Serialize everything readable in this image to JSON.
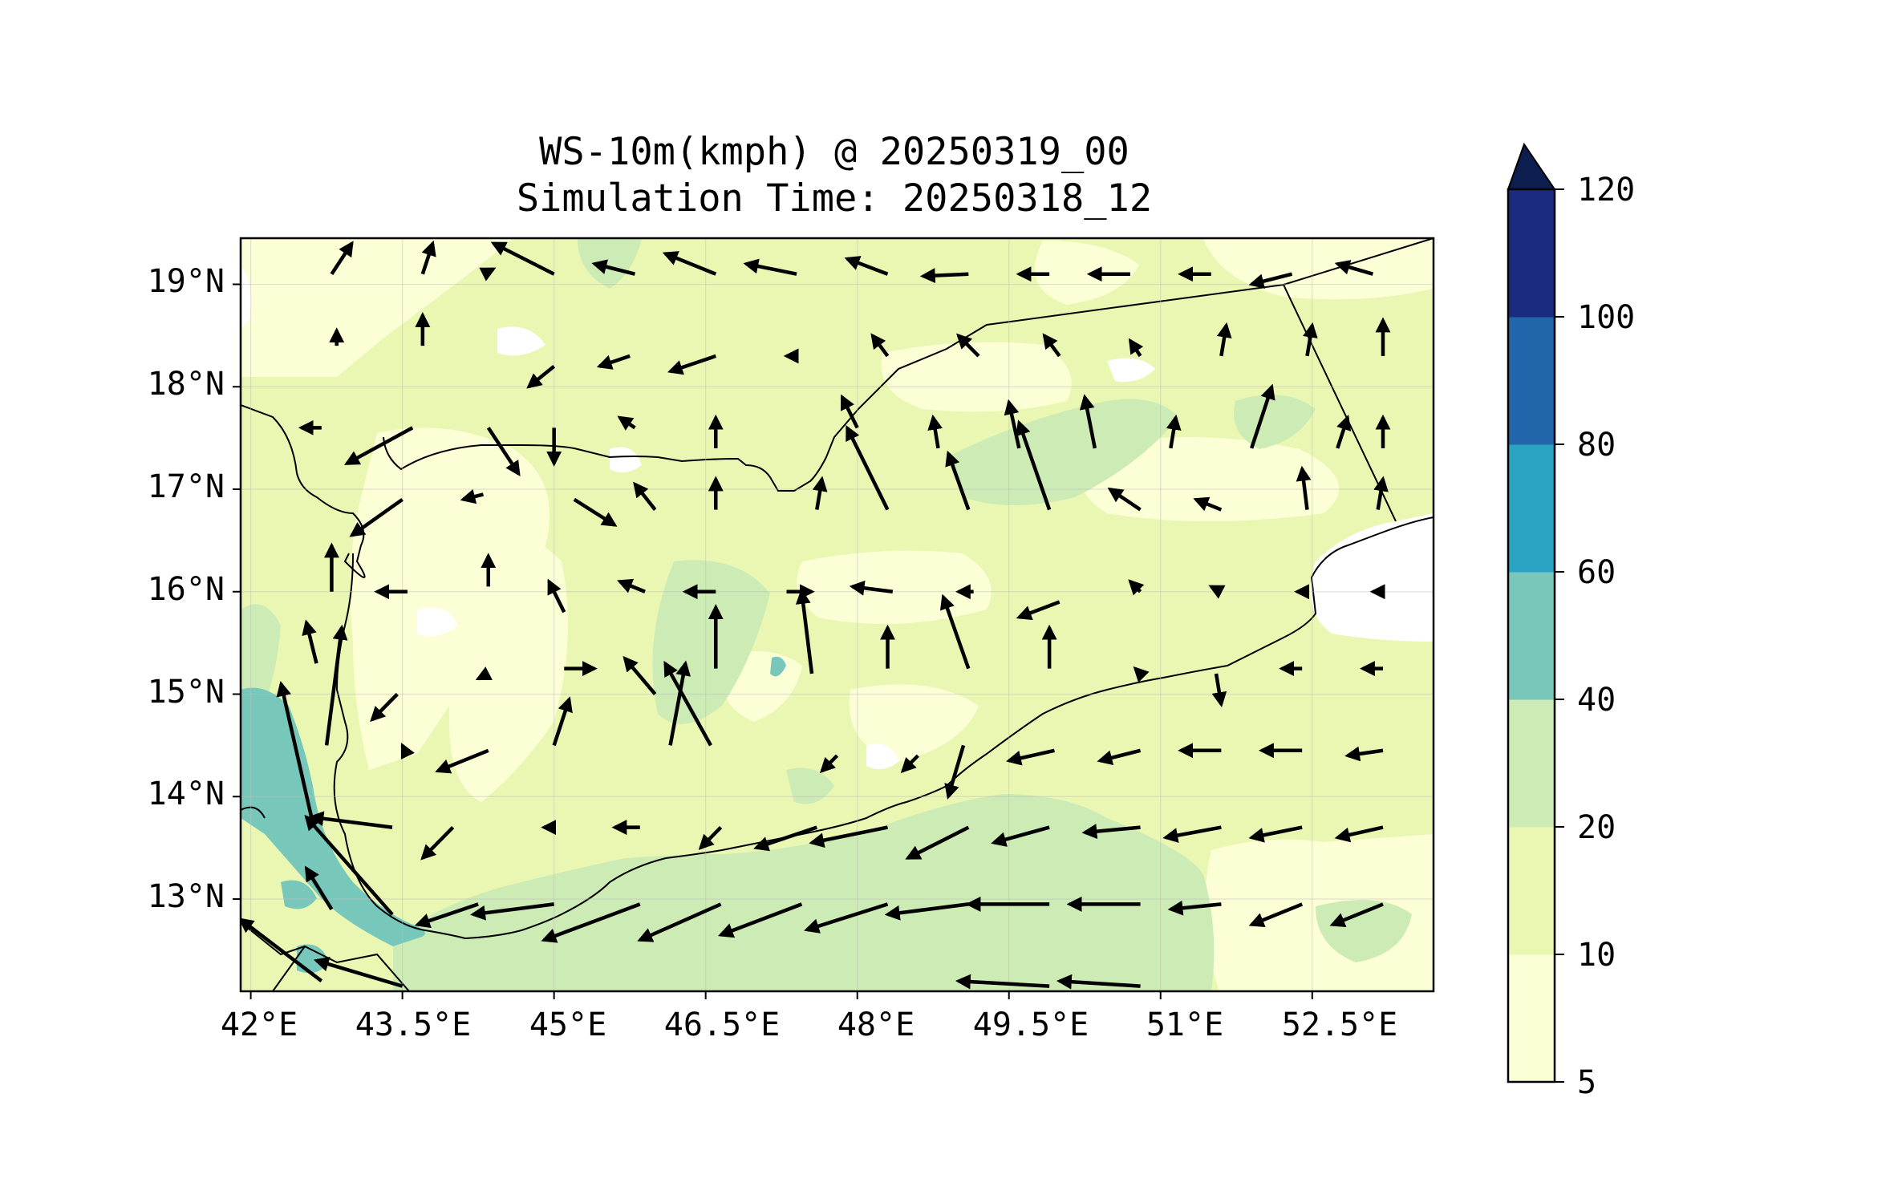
{
  "title": {
    "line1": "WS-10m(kmph) @ 20250319_00",
    "line2": "Simulation Time: 20250318_12"
  },
  "axes": {
    "x_ticks": [
      "42°E",
      "43.5°E",
      "45°E",
      "46.5°E",
      "48°E",
      "49.5°E",
      "51°E",
      "52.5°E"
    ],
    "x_tick_values": [
      42,
      43.5,
      45,
      46.5,
      48,
      49.5,
      51,
      52.5
    ],
    "y_ticks": [
      "19°N",
      "18°N",
      "17°N",
      "16°N",
      "15°N",
      "14°N",
      "13°N"
    ],
    "y_tick_values": [
      19,
      18,
      17,
      16,
      15,
      14,
      13
    ],
    "lon_range": [
      41.9,
      53.7
    ],
    "lat_range": [
      12.1,
      19.45
    ],
    "grid": true
  },
  "colorbar": {
    "labels": [
      "120",
      "100",
      "80",
      "60",
      "40",
      "20",
      "10",
      "5"
    ],
    "levels": [
      5,
      10,
      20,
      40,
      60,
      80,
      100,
      120
    ],
    "colors": [
      "#fcffd5",
      "#eaf7b3",
      "#cdebb4",
      "#77c8bb",
      "#2ba3c3",
      "#2165ab",
      "#1b2c80"
    ],
    "extend_color": "#0b1e4f",
    "extend": "max"
  },
  "chart_data": {
    "type": "map",
    "variable": "WS-10m(kmph)",
    "valid_time": "20250319_00",
    "simulation_time": "20250318_12",
    "background_level_color": "#eaf7b3",
    "wind_vectors": [
      {
        "lon": 42.8,
        "lat": 19.1,
        "dlon": 0.2,
        "dlat": 0.3
      },
      {
        "lon": 43.7,
        "lat": 19.1,
        "dlon": 0.1,
        "dlat": 0.3
      },
      {
        "lon": 44.3,
        "lat": 19.1,
        "dlon": 0.1,
        "dlat": 0.05
      },
      {
        "lon": 45.0,
        "lat": 19.1,
        "dlon": -0.6,
        "dlat": 0.3
      },
      {
        "lon": 45.8,
        "lat": 19.1,
        "dlon": -0.4,
        "dlat": 0.1
      },
      {
        "lon": 46.6,
        "lat": 19.1,
        "dlon": -0.5,
        "dlat": 0.2
      },
      {
        "lon": 47.4,
        "lat": 19.1,
        "dlon": -0.5,
        "dlat": 0.1
      },
      {
        "lon": 48.3,
        "lat": 19.1,
        "dlon": -0.4,
        "dlat": 0.15
      },
      {
        "lon": 49.1,
        "lat": 19.1,
        "dlon": -0.45,
        "dlat": -0.02
      },
      {
        "lon": 49.9,
        "lat": 19.1,
        "dlon": -0.3,
        "dlat": 0.0
      },
      {
        "lon": 50.7,
        "lat": 19.1,
        "dlon": -0.4,
        "dlat": 0.0
      },
      {
        "lon": 51.5,
        "lat": 19.1,
        "dlon": -0.3,
        "dlat": 0.0
      },
      {
        "lon": 52.3,
        "lat": 19.1,
        "dlon": -0.4,
        "dlat": -0.1
      },
      {
        "lon": 53.1,
        "lat": 19.1,
        "dlon": -0.35,
        "dlat": 0.1
      },
      {
        "lon": 42.85,
        "lat": 18.4,
        "dlon": 0.0,
        "dlat": 0.15
      },
      {
        "lon": 43.7,
        "lat": 18.4,
        "dlon": 0.0,
        "dlat": 0.3
      },
      {
        "lon": 45.0,
        "lat": 18.2,
        "dlon": -0.25,
        "dlat": -0.2
      },
      {
        "lon": 45.75,
        "lat": 18.3,
        "dlon": -0.3,
        "dlat": -0.1
      },
      {
        "lon": 46.6,
        "lat": 18.3,
        "dlon": -0.45,
        "dlat": -0.15
      },
      {
        "lon": 47.4,
        "lat": 18.3,
        "dlon": -0.1,
        "dlat": 0.0
      },
      {
        "lon": 48.3,
        "lat": 18.3,
        "dlon": -0.15,
        "dlat": 0.2
      },
      {
        "lon": 49.2,
        "lat": 18.3,
        "dlon": -0.2,
        "dlat": 0.2
      },
      {
        "lon": 50.0,
        "lat": 18.3,
        "dlon": -0.15,
        "dlat": 0.2
      },
      {
        "lon": 50.8,
        "lat": 18.3,
        "dlon": -0.1,
        "dlat": 0.15
      },
      {
        "lon": 51.6,
        "lat": 18.3,
        "dlon": 0.05,
        "dlat": 0.3
      },
      {
        "lon": 52.45,
        "lat": 18.3,
        "dlon": 0.05,
        "dlat": 0.3
      },
      {
        "lon": 53.2,
        "lat": 18.3,
        "dlon": 0.0,
        "dlat": 0.35
      },
      {
        "lon": 42.7,
        "lat": 17.6,
        "dlon": -0.2,
        "dlat": 0.0
      },
      {
        "lon": 43.6,
        "lat": 17.6,
        "dlon": -0.65,
        "dlat": -0.35
      },
      {
        "lon": 44.35,
        "lat": 17.6,
        "dlon": 0.3,
        "dlat": -0.45
      },
      {
        "lon": 45.0,
        "lat": 17.6,
        "dlon": 0.0,
        "dlat": -0.35
      },
      {
        "lon": 45.8,
        "lat": 17.6,
        "dlon": -0.15,
        "dlat": 0.1
      },
      {
        "lon": 46.6,
        "lat": 17.4,
        "dlon": 0.0,
        "dlat": 0.3
      },
      {
        "lon": 48.0,
        "lat": 17.6,
        "dlon": -0.15,
        "dlat": 0.3
      },
      {
        "lon": 48.8,
        "lat": 17.4,
        "dlon": -0.05,
        "dlat": 0.3
      },
      {
        "lon": 49.6,
        "lat": 17.4,
        "dlon": -0.1,
        "dlat": 0.45
      },
      {
        "lon": 50.35,
        "lat": 17.4,
        "dlon": -0.1,
        "dlat": 0.5
      },
      {
        "lon": 51.1,
        "lat": 17.4,
        "dlon": 0.05,
        "dlat": 0.3
      },
      {
        "lon": 51.9,
        "lat": 17.4,
        "dlon": 0.2,
        "dlat": 0.6
      },
      {
        "lon": 52.75,
        "lat": 17.4,
        "dlon": 0.1,
        "dlat": 0.3
      },
      {
        "lon": 53.2,
        "lat": 17.4,
        "dlon": 0.0,
        "dlat": 0.3
      },
      {
        "lon": 43.5,
        "lat": 16.9,
        "dlon": -0.5,
        "dlat": -0.35
      },
      {
        "lon": 44.3,
        "lat": 16.95,
        "dlon": -0.2,
        "dlat": -0.05
      },
      {
        "lon": 45.2,
        "lat": 16.9,
        "dlon": 0.4,
        "dlat": -0.25
      },
      {
        "lon": 46.0,
        "lat": 16.8,
        "dlon": -0.2,
        "dlat": 0.25
      },
      {
        "lon": 46.6,
        "lat": 16.8,
        "dlon": 0.0,
        "dlat": 0.3
      },
      {
        "lon": 47.6,
        "lat": 16.8,
        "dlon": 0.05,
        "dlat": 0.3
      },
      {
        "lon": 48.3,
        "lat": 16.8,
        "dlon": -0.4,
        "dlat": 0.8
      },
      {
        "lon": 49.1,
        "lat": 16.8,
        "dlon": -0.2,
        "dlat": 0.55
      },
      {
        "lon": 49.9,
        "lat": 16.8,
        "dlon": -0.3,
        "dlat": 0.85
      },
      {
        "lon": 50.8,
        "lat": 16.8,
        "dlon": -0.3,
        "dlat": 0.2
      },
      {
        "lon": 51.6,
        "lat": 16.8,
        "dlon": -0.25,
        "dlat": 0.1
      },
      {
        "lon": 52.45,
        "lat": 16.8,
        "dlon": -0.05,
        "dlat": 0.4
      },
      {
        "lon": 53.15,
        "lat": 16.8,
        "dlon": 0.05,
        "dlat": 0.3
      },
      {
        "lon": 42.8,
        "lat": 16.0,
        "dlon": 0.0,
        "dlat": 0.45
      },
      {
        "lon": 43.55,
        "lat": 16.0,
        "dlon": -0.3,
        "dlat": 0.0
      },
      {
        "lon": 44.35,
        "lat": 16.05,
        "dlon": 0.0,
        "dlat": 0.3
      },
      {
        "lon": 45.1,
        "lat": 15.8,
        "dlon": -0.15,
        "dlat": 0.3
      },
      {
        "lon": 45.9,
        "lat": 16.0,
        "dlon": -0.25,
        "dlat": 0.1
      },
      {
        "lon": 46.6,
        "lat": 16.0,
        "dlon": -0.3,
        "dlat": 0.0
      },
      {
        "lon": 47.3,
        "lat": 16.0,
        "dlon": 0.25,
        "dlat": 0.0
      },
      {
        "lon": 47.55,
        "lat": 15.2,
        "dlon": -0.1,
        "dlat": 0.8
      },
      {
        "lon": 48.35,
        "lat": 16.0,
        "dlon": -0.4,
        "dlat": 0.05
      },
      {
        "lon": 49.15,
        "lat": 16.0,
        "dlon": -0.15,
        "dlat": 0.0
      },
      {
        "lon": 50.0,
        "lat": 15.9,
        "dlon": -0.4,
        "dlat": -0.15
      },
      {
        "lon": 50.8,
        "lat": 16.0,
        "dlon": -0.1,
        "dlat": 0.1
      },
      {
        "lon": 51.6,
        "lat": 16.0,
        "dlon": -0.1,
        "dlat": 0.05
      },
      {
        "lon": 52.45,
        "lat": 16.0,
        "dlon": -0.1,
        "dlat": 0.0
      },
      {
        "lon": 53.15,
        "lat": 16.0,
        "dlon": -0.05,
        "dlat": 0.0
      },
      {
        "lon": 42.65,
        "lat": 15.3,
        "dlon": -0.1,
        "dlat": 0.4
      },
      {
        "lon": 42.75,
        "lat": 14.5,
        "dlon": 0.15,
        "dlat": 1.15
      },
      {
        "lon": 43.45,
        "lat": 15.0,
        "dlon": -0.25,
        "dlat": -0.25
      },
      {
        "lon": 44.35,
        "lat": 15.2,
        "dlon": -0.1,
        "dlat": -0.05
      },
      {
        "lon": 45.1,
        "lat": 15.25,
        "dlon": 0.3,
        "dlat": 0.0
      },
      {
        "lon": 46.0,
        "lat": 15.0,
        "dlon": -0.3,
        "dlat": 0.35
      },
      {
        "lon": 46.6,
        "lat": 15.25,
        "dlon": 0.0,
        "dlat": 0.6
      },
      {
        "lon": 46.15,
        "lat": 14.5,
        "dlon": 0.15,
        "dlat": 0.8
      },
      {
        "lon": 46.55,
        "lat": 14.5,
        "dlon": -0.45,
        "dlat": 0.8
      },
      {
        "lon": 48.3,
        "lat": 15.25,
        "dlon": 0.0,
        "dlat": 0.4
      },
      {
        "lon": 49.1,
        "lat": 15.25,
        "dlon": -0.25,
        "dlat": 0.7
      },
      {
        "lon": 49.9,
        "lat": 15.25,
        "dlon": 0.0,
        "dlat": 0.4
      },
      {
        "lon": 50.8,
        "lat": 15.2,
        "dlon": -0.05,
        "dlat": 0.05
      },
      {
        "lon": 51.55,
        "lat": 15.2,
        "dlon": 0.05,
        "dlat": -0.3
      },
      {
        "lon": 52.4,
        "lat": 15.25,
        "dlon": -0.2,
        "dlat": 0.0
      },
      {
        "lon": 53.2,
        "lat": 15.25,
        "dlon": -0.2,
        "dlat": 0.0
      },
      {
        "lon": 43.55,
        "lat": 14.4,
        "dlon": -0.05,
        "dlat": 0.1
      },
      {
        "lon": 44.35,
        "lat": 14.45,
        "dlon": -0.5,
        "dlat": -0.2
      },
      {
        "lon": 45.0,
        "lat": 14.5,
        "dlon": 0.15,
        "dlat": 0.45
      },
      {
        "lon": 47.8,
        "lat": 14.4,
        "dlon": -0.15,
        "dlat": -0.15
      },
      {
        "lon": 48.6,
        "lat": 14.4,
        "dlon": -0.15,
        "dlat": -0.15
      },
      {
        "lon": 49.05,
        "lat": 14.5,
        "dlon": -0.15,
        "dlat": -0.5
      },
      {
        "lon": 49.95,
        "lat": 14.45,
        "dlon": -0.45,
        "dlat": -0.1
      },
      {
        "lon": 50.8,
        "lat": 14.45,
        "dlon": -0.4,
        "dlat": -0.1
      },
      {
        "lon": 51.6,
        "lat": 14.45,
        "dlon": -0.4,
        "dlat": 0.0
      },
      {
        "lon": 52.4,
        "lat": 14.45,
        "dlon": -0.4,
        "dlat": 0.0
      },
      {
        "lon": 53.2,
        "lat": 14.45,
        "dlon": -0.35,
        "dlat": -0.05
      },
      {
        "lon": 42.6,
        "lat": 13.8,
        "dlon": -0.3,
        "dlat": 1.3
      },
      {
        "lon": 43.4,
        "lat": 13.7,
        "dlon": -0.8,
        "dlat": 0.1
      },
      {
        "lon": 43.4,
        "lat": 12.85,
        "dlon": -0.85,
        "dlat": 0.95
      },
      {
        "lon": 44.0,
        "lat": 13.7,
        "dlon": -0.3,
        "dlat": -0.3
      },
      {
        "lon": 45.0,
        "lat": 13.7,
        "dlon": -0.1,
        "dlat": 0.0
      },
      {
        "lon": 45.85,
        "lat": 13.7,
        "dlon": -0.25,
        "dlat": 0.0
      },
      {
        "lon": 46.65,
        "lat": 13.7,
        "dlon": -0.2,
        "dlat": -0.2
      },
      {
        "lon": 47.6,
        "lat": 13.7,
        "dlon": -0.6,
        "dlat": -0.2
      },
      {
        "lon": 48.3,
        "lat": 13.7,
        "dlon": -0.75,
        "dlat": -0.15
      },
      {
        "lon": 49.1,
        "lat": 13.7,
        "dlon": -0.6,
        "dlat": -0.3
      },
      {
        "lon": 49.9,
        "lat": 13.7,
        "dlon": -0.55,
        "dlat": -0.15
      },
      {
        "lon": 50.8,
        "lat": 13.7,
        "dlon": -0.55,
        "dlat": -0.05
      },
      {
        "lon": 51.6,
        "lat": 13.7,
        "dlon": -0.55,
        "dlat": -0.1
      },
      {
        "lon": 52.4,
        "lat": 13.7,
        "dlon": -0.5,
        "dlat": -0.1
      },
      {
        "lon": 53.2,
        "lat": 13.7,
        "dlon": -0.45,
        "dlat": -0.1
      },
      {
        "lon": 42.8,
        "lat": 12.9,
        "dlon": -0.25,
        "dlat": 0.4
      },
      {
        "lon": 44.25,
        "lat": 12.95,
        "dlon": -0.6,
        "dlat": -0.2
      },
      {
        "lon": 45.0,
        "lat": 12.95,
        "dlon": -0.8,
        "dlat": -0.1
      },
      {
        "lon": 45.85,
        "lat": 12.95,
        "dlon": -0.95,
        "dlat": -0.35
      },
      {
        "lon": 46.65,
        "lat": 12.95,
        "dlon": -0.8,
        "dlat": -0.35
      },
      {
        "lon": 47.45,
        "lat": 12.95,
        "dlon": -0.8,
        "dlat": -0.3
      },
      {
        "lon": 48.3,
        "lat": 12.95,
        "dlon": -0.8,
        "dlat": -0.25
      },
      {
        "lon": 49.1,
        "lat": 12.95,
        "dlon": -0.8,
        "dlat": -0.1
      },
      {
        "lon": 49.9,
        "lat": 12.95,
        "dlon": -0.8,
        "dlat": 0.0
      },
      {
        "lon": 50.8,
        "lat": 12.95,
        "dlon": -0.7,
        "dlat": 0.0
      },
      {
        "lon": 51.6,
        "lat": 12.95,
        "dlon": -0.5,
        "dlat": -0.05
      },
      {
        "lon": 52.4,
        "lat": 12.95,
        "dlon": -0.5,
        "dlat": -0.2
      },
      {
        "lon": 53.2,
        "lat": 12.95,
        "dlon": -0.5,
        "dlat": -0.2
      },
      {
        "lon": 42.7,
        "lat": 12.2,
        "dlon": -0.8,
        "dlat": 0.6
      },
      {
        "lon": 43.5,
        "lat": 12.15,
        "dlon": -0.85,
        "dlat": 0.25
      },
      {
        "lon": 49.9,
        "lat": 12.15,
        "dlon": -0.9,
        "dlat": 0.05
      },
      {
        "lon": 50.8,
        "lat": 12.15,
        "dlon": -0.8,
        "dlat": 0.05
      }
    ]
  }
}
